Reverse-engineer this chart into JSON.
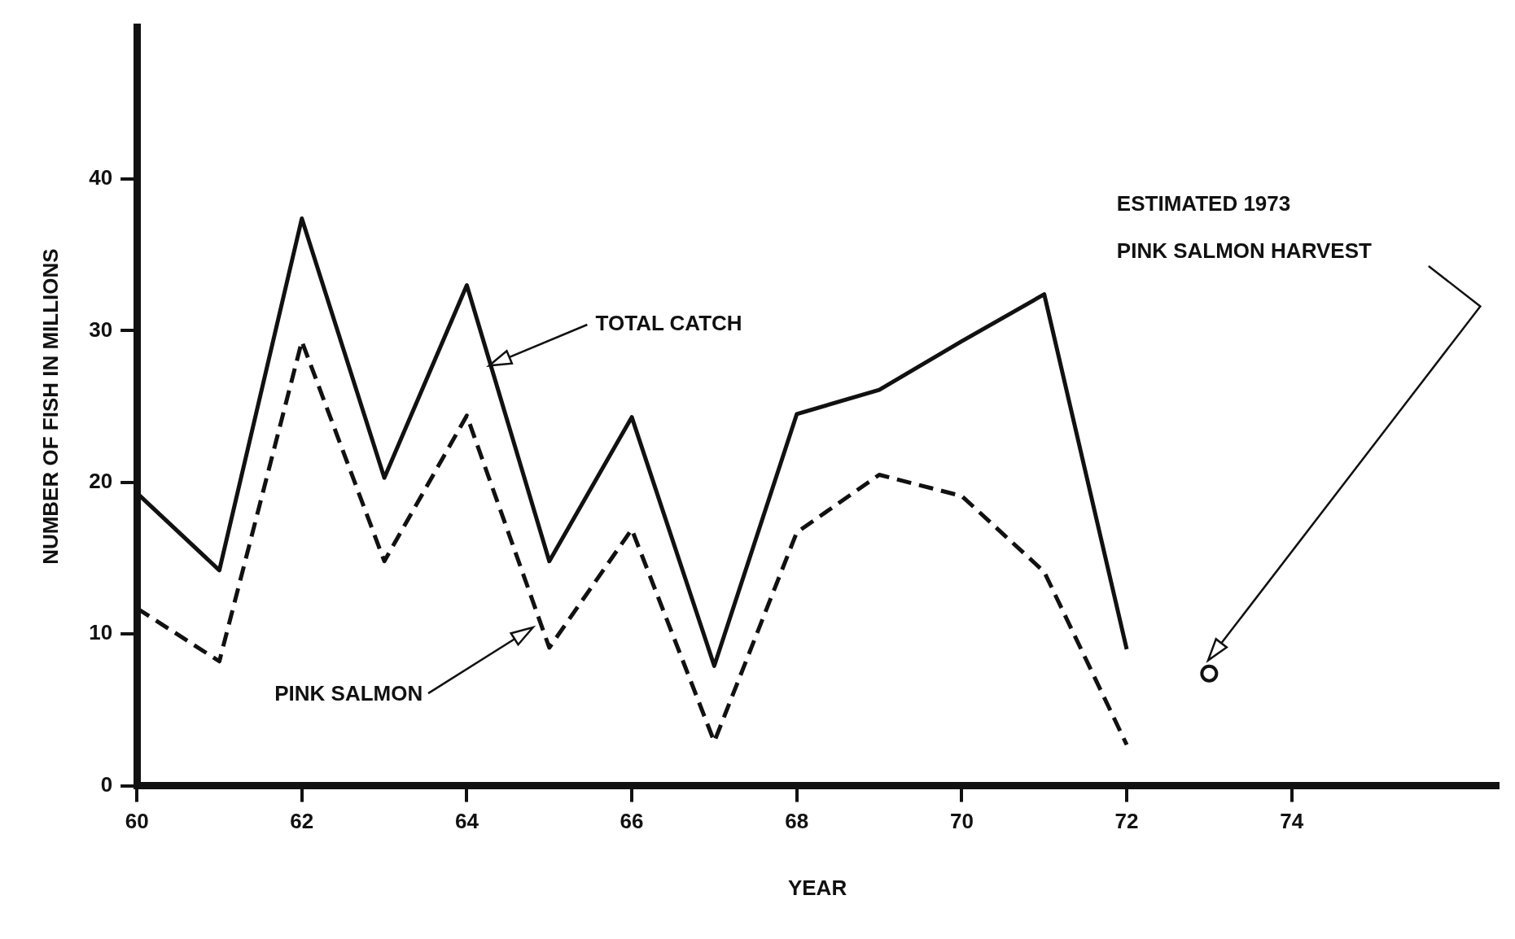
{
  "chart_data": {
    "type": "line",
    "xlabel": "YEAR",
    "ylabel": "NUMBER OF FISH IN MILLIONS",
    "xlim": [
      60,
      76.5
    ],
    "xticks": [
      60,
      62,
      64,
      66,
      68,
      70,
      72,
      74
    ],
    "ylim": [
      0,
      50
    ],
    "yticks": [
      0,
      10,
      20,
      30,
      40
    ],
    "grid": false,
    "legend": false,
    "series": [
      {
        "color": "#111111",
        "line_style": "solid",
        "marker": "none",
        "x": [
          60,
          61,
          62,
          63,
          64,
          65,
          66,
          67,
          68,
          69,
          70,
          71,
          72
        ],
        "values": [
          19.3,
          14.2,
          37.4,
          20.3,
          33.0,
          14.8,
          24.3,
          7.9,
          24.5,
          26.1,
          29.3,
          32.4,
          9.0
        ]
      },
      {
        "color": "#111111",
        "line_style": "dashed",
        "marker": "none",
        "x": [
          60,
          61,
          62,
          63,
          64,
          65,
          66,
          67,
          68,
          69,
          70,
          71,
          72
        ],
        "values": [
          11.7,
          8.2,
          29.3,
          14.8,
          24.4,
          9.1,
          16.9,
          2.9,
          16.7,
          20.5,
          19.1,
          14.1,
          2.7
        ]
      },
      {
        "type": "scatter",
        "color": "#111111",
        "marker": "circle",
        "x": [
          73
        ],
        "values": [
          7.4
        ]
      }
    ],
    "annotations": [
      "TOTAL CATCH",
      "PINK SALMON",
      "ESTIMATED 1973\nPINK SALMON HARVEST"
    ]
  }
}
